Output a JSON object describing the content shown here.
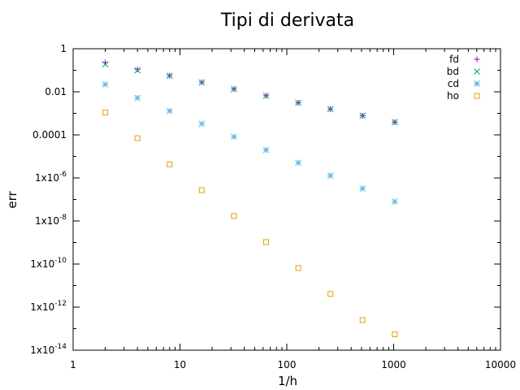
{
  "chart_data": {
    "type": "scatter",
    "title": "Tipi di derivata",
    "xlabel": "1/h",
    "ylabel": "err",
    "xscale": "log",
    "yscale": "log",
    "xlim": [
      1,
      10000
    ],
    "ylim": [
      1e-14,
      1
    ],
    "legend_position": "top-right",
    "x_ticks": [
      {
        "value": 1,
        "base": "1",
        "exp": ""
      },
      {
        "value": 10,
        "base": "10",
        "exp": ""
      },
      {
        "value": 100,
        "base": "100",
        "exp": ""
      },
      {
        "value": 1000,
        "base": "1000",
        "exp": ""
      },
      {
        "value": 10000,
        "base": "10000",
        "exp": ""
      }
    ],
    "y_ticks": [
      {
        "value": 1,
        "base": "1",
        "exp": ""
      },
      {
        "value": 0.01,
        "base": "0.01",
        "exp": ""
      },
      {
        "value": 0.0001,
        "base": "0.0001",
        "exp": ""
      },
      {
        "value": 1e-06,
        "base": "1x10",
        "exp": "-6"
      },
      {
        "value": 1e-08,
        "base": "1x10",
        "exp": "-8"
      },
      {
        "value": 1e-10,
        "base": "1x10",
        "exp": "-10"
      },
      {
        "value": 1e-12,
        "base": "1x10",
        "exp": "-12"
      },
      {
        "value": 1e-14,
        "base": "1x10",
        "exp": "-14"
      }
    ],
    "series": [
      {
        "name": "fd",
        "marker": "plus",
        "color": "#9400d3",
        "x": [
          2,
          4,
          8,
          16,
          32,
          64,
          128,
          256,
          512,
          1024
        ],
        "y": [
          0.23,
          0.11,
          0.057,
          0.028,
          0.0135,
          0.0066,
          0.0031,
          0.00158,
          0.00078,
          0.00039
        ]
      },
      {
        "name": "bd",
        "marker": "cross",
        "color": "#009e73",
        "x": [
          2,
          4,
          8,
          16,
          32,
          64,
          128,
          256,
          512,
          1024
        ],
        "y": [
          0.19,
          0.1,
          0.055,
          0.027,
          0.0133,
          0.0065,
          0.0031,
          0.00156,
          0.00078,
          0.00039
        ]
      },
      {
        "name": "cd",
        "marker": "asterisk",
        "color": "#56b4e9",
        "x": [
          2,
          4,
          8,
          16,
          32,
          64,
          128,
          256,
          512,
          1024
        ],
        "y": [
          0.022,
          0.0052,
          0.0013,
          0.00033,
          8.2e-05,
          2e-05,
          5.1e-06,
          1.28e-06,
          3.2e-07,
          8e-08
        ]
      },
      {
        "name": "ho",
        "marker": "square",
        "color": "#e69f00",
        "x": [
          2,
          4,
          8,
          16,
          32,
          64,
          128,
          256,
          512,
          1024
        ],
        "y": [
          0.0011,
          7e-05,
          4.3e-06,
          2.7e-07,
          1.7e-08,
          1.05e-09,
          6.5e-11,
          4.1e-12,
          2.5e-13,
          5.5e-14
        ]
      }
    ]
  }
}
